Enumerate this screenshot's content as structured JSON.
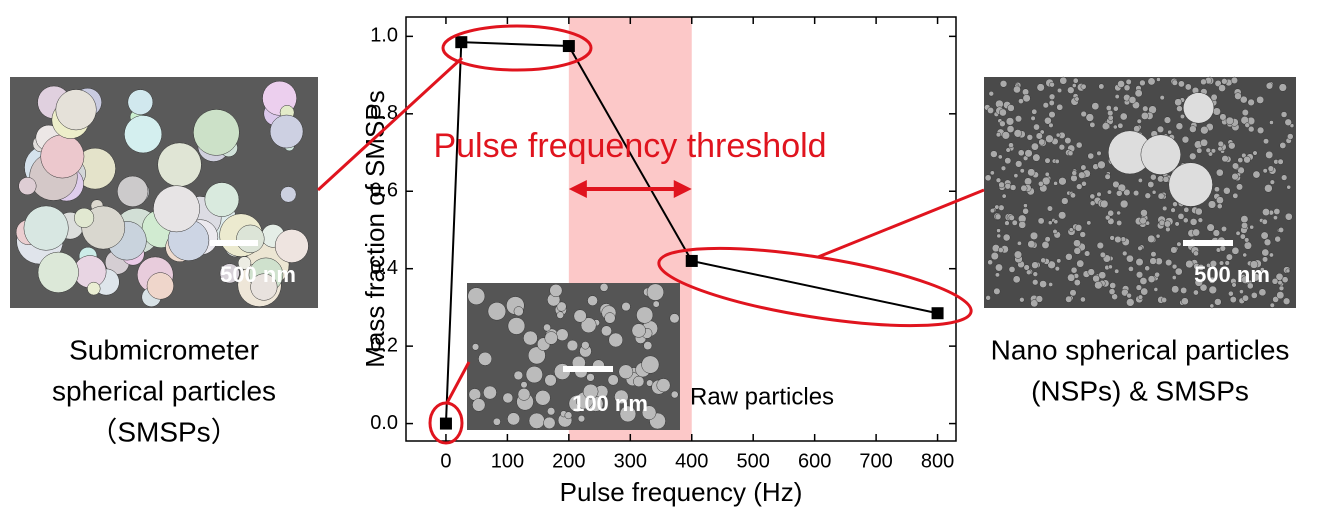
{
  "chart_data": {
    "type": "line",
    "x_label": "Pulse frequency (Hz)",
    "y_label": "Mass fraction of SMSPs",
    "x": [
      0,
      25,
      200,
      400,
      800
    ],
    "values": [
      0.0,
      0.985,
      0.975,
      0.42,
      0.285
    ],
    "color": "#000000",
    "xlim": [
      -65,
      830
    ],
    "ylim": [
      -0.045,
      1.05
    ],
    "xticks": [
      0,
      100,
      200,
      300,
      400,
      500,
      600,
      700,
      800
    ],
    "yticks": [
      {
        "value": 0,
        "label": "0.0"
      },
      0.2,
      0.4,
      0.6,
      0.8,
      {
        "value": 1,
        "label": "1.0"
      }
    ],
    "shaded_region": [
      200,
      400
    ],
    "shaded_color": "#fcc8c8",
    "annotation_color": "#e0141e",
    "threshold_label": "Pulse frequency threshold",
    "raw_label": "Raw particles"
  },
  "images": {
    "left": {
      "scale_bar": "500 nm",
      "caption": [
        "Submicrometer",
        "spherical particles",
        "（SMSPs）"
      ]
    },
    "right": {
      "scale_bar": "500 nm",
      "caption": [
        "Nano spherical particles",
        "(NSPs) & SMSPs"
      ]
    },
    "inset": {
      "scale_bar": "100 nm"
    }
  }
}
